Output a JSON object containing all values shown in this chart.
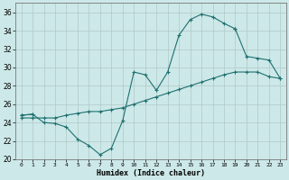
{
  "xlabel": "Humidex (Indice chaleur)",
  "ylabel": "",
  "background_color": "#cde8e8",
  "grid_color": "#b0c8c8",
  "line_color": "#1e7070",
  "xlim": [
    -0.5,
    23.5
  ],
  "ylim": [
    20,
    37
  ],
  "xticks": [
    0,
    1,
    2,
    3,
    4,
    5,
    6,
    7,
    8,
    9,
    10,
    11,
    12,
    13,
    14,
    15,
    16,
    17,
    18,
    19,
    20,
    21,
    22,
    23
  ],
  "yticks": [
    20,
    22,
    24,
    26,
    28,
    30,
    32,
    34,
    36
  ],
  "series1_x": [
    0,
    1,
    2,
    3,
    4,
    5,
    6,
    7,
    8,
    9,
    10,
    11,
    12,
    13,
    14,
    15,
    16,
    17,
    18,
    19,
    20,
    21,
    22,
    23
  ],
  "series1_y": [
    24.8,
    24.9,
    24.0,
    23.9,
    23.5,
    22.2,
    21.5,
    20.5,
    21.2,
    24.2,
    29.5,
    29.2,
    27.5,
    29.5,
    33.5,
    35.2,
    35.8,
    35.5,
    34.8,
    34.2,
    null,
    null,
    null,
    null
  ],
  "series2_x": [
    0,
    1,
    2,
    3,
    4,
    5,
    6,
    7,
    8,
    9,
    10,
    11,
    12,
    13,
    14,
    15,
    16,
    17,
    18,
    19,
    20,
    21,
    22,
    23
  ],
  "series2_y": [
    24.5,
    24.5,
    24.5,
    24.5,
    24.8,
    25.0,
    25.2,
    25.2,
    25.4,
    25.6,
    26.0,
    26.4,
    26.8,
    27.2,
    27.6,
    28.0,
    28.4,
    28.8,
    29.2,
    29.5,
    29.5,
    29.5,
    29.0,
    28.8
  ],
  "series3_x": [
    0,
    1,
    2,
    3,
    4,
    5,
    6,
    7,
    8,
    9,
    10,
    11,
    12,
    13,
    14,
    15,
    16,
    17,
    18,
    19,
    20,
    21,
    22,
    23
  ],
  "series3_y": [
    24.8,
    24.9,
    null,
    null,
    null,
    null,
    null,
    null,
    null,
    null,
    null,
    null,
    null,
    null,
    null,
    null,
    null,
    null,
    null,
    34.2,
    31.2,
    31.0,
    30.8,
    28.8
  ]
}
